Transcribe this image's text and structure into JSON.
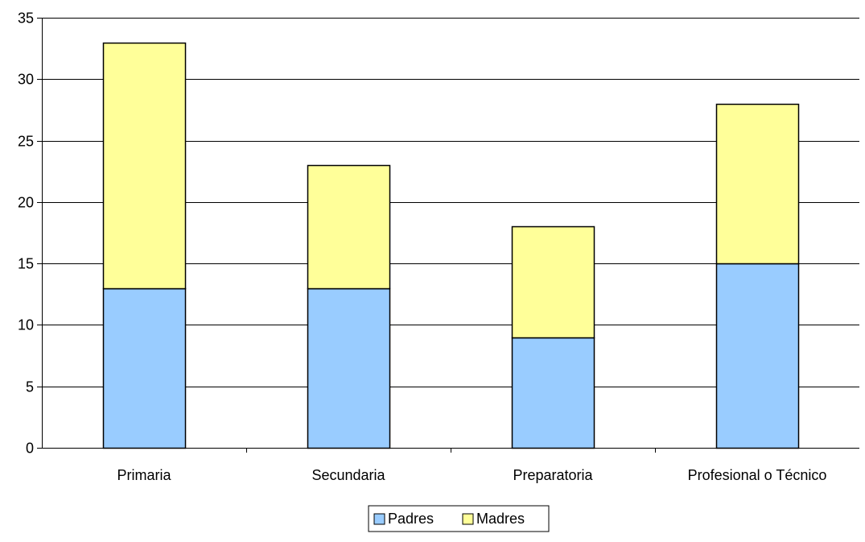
{
  "chart_data": {
    "type": "bar",
    "stacked": true,
    "title": "",
    "xlabel": "",
    "ylabel": "",
    "categories": [
      "Primaria",
      "Secundaria",
      "Preparatoria",
      "Profesional o Técnico"
    ],
    "series": [
      {
        "name": "Padres",
        "values": [
          13,
          13,
          9,
          15
        ],
        "color": "#99ccff"
      },
      {
        "name": "Madres",
        "values": [
          20,
          10,
          9,
          13
        ],
        "color": "#ffff99"
      }
    ],
    "ylim": [
      0,
      35
    ],
    "yticks": [
      0,
      5,
      10,
      15,
      20,
      25,
      30,
      35
    ],
    "grid": true,
    "legend": "bottom"
  }
}
